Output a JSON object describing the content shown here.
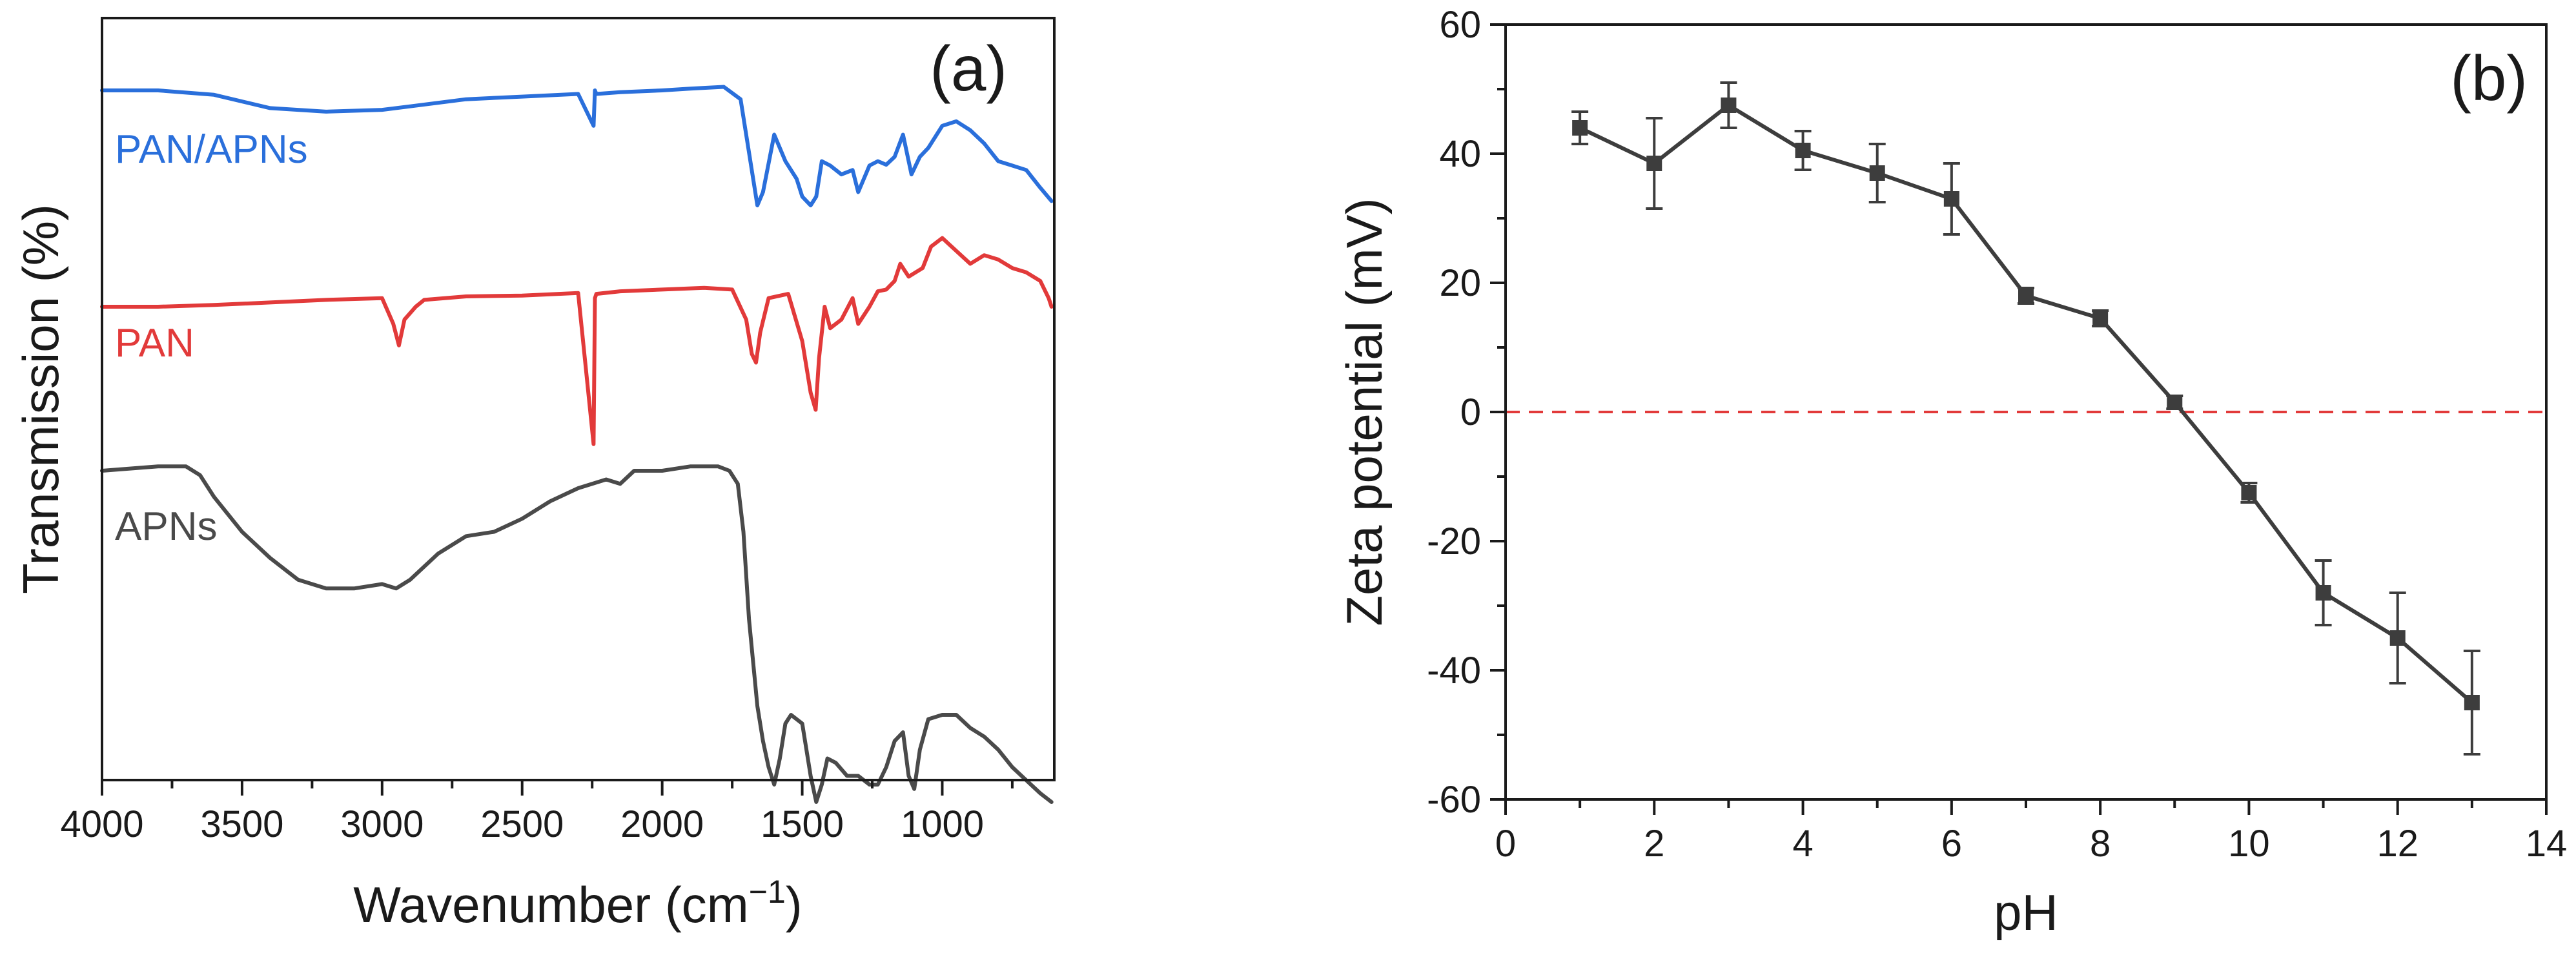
{
  "chart_data": [
    {
      "type": "line",
      "panel_label": "(a)",
      "xlabel_main": "Wavenumber (cm",
      "xlabel_sup": "−1",
      "xlabel_close": ")",
      "ylabel": "Transmission (%)",
      "xlim": [
        4000,
        600
      ],
      "x_reversed": true,
      "x_ticks": [
        "4000",
        "3500",
        "3000",
        "2500",
        "2000",
        "1500",
        "1000"
      ],
      "y_ticks_labeled": false,
      "series": [
        {
          "name": "PAN/APNs",
          "color": "#2a6fdb",
          "x": [
            4000,
            3800,
            3600,
            3400,
            3200,
            3000,
            2900,
            2700,
            2500,
            2300,
            2245,
            2240,
            2235,
            2150,
            2000,
            1900,
            1780,
            1720,
            1690,
            1660,
            1640,
            1600,
            1560,
            1520,
            1500,
            1470,
            1450,
            1430,
            1400,
            1360,
            1320,
            1300,
            1280,
            1260,
            1230,
            1200,
            1170,
            1140,
            1110,
            1080,
            1050,
            1000,
            950,
            900,
            850,
            800,
            750,
            700,
            650,
            610
          ],
          "y": [
            96,
            96,
            95.5,
            94,
            93.6,
            93.8,
            94.2,
            95,
            95.3,
            95.6,
            92,
            96,
            95.6,
            95.8,
            96,
            96.2,
            96.4,
            95,
            89,
            83,
            84.5,
            91,
            88,
            86,
            84,
            83,
            84,
            88,
            87.5,
            86.5,
            87,
            84.5,
            86,
            87.5,
            88,
            87.6,
            88.5,
            91,
            86.5,
            88.5,
            89.5,
            92,
            92.5,
            91.5,
            90,
            88,
            87.5,
            87,
            85,
            83.5
          ]
        },
        {
          "name": "PAN",
          "color": "#e23a3a",
          "x": [
            4000,
            3800,
            3600,
            3400,
            3200,
            3000,
            2960,
            2940,
            2920,
            2880,
            2850,
            2700,
            2500,
            2300,
            2245,
            2240,
            2235,
            2150,
            2000,
            1850,
            1750,
            1700,
            1680,
            1665,
            1650,
            1620,
            1550,
            1500,
            1470,
            1452,
            1440,
            1420,
            1400,
            1360,
            1320,
            1300,
            1280,
            1260,
            1230,
            1200,
            1170,
            1150,
            1120,
            1070,
            1040,
            1000,
            950,
            900,
            850,
            800,
            750,
            700,
            650,
            620,
            610
          ],
          "y": [
            66,
            66,
            66.2,
            66.5,
            66.8,
            67,
            64,
            61.5,
            64.5,
            66,
            66.8,
            67.2,
            67.3,
            67.6,
            50,
            67,
            67.5,
            67.8,
            68,
            68.2,
            68,
            64.5,
            60.5,
            59.5,
            63,
            67,
            67.5,
            62,
            56,
            54,
            60,
            66,
            63.5,
            64.5,
            67,
            64,
            65,
            66,
            67.8,
            68,
            69,
            71,
            69.5,
            70.5,
            73,
            74,
            72.5,
            71,
            72,
            71.5,
            70.5,
            70,
            69,
            67,
            66
          ]
        },
        {
          "name": "APNs",
          "color": "#4a4a4a",
          "x": [
            4000,
            3800,
            3700,
            3650,
            3600,
            3500,
            3400,
            3300,
            3200,
            3100,
            3000,
            2950,
            2900,
            2800,
            2700,
            2600,
            2500,
            2400,
            2300,
            2200,
            2150,
            2100,
            2000,
            1900,
            1800,
            1760,
            1730,
            1710,
            1690,
            1660,
            1640,
            1620,
            1600,
            1580,
            1560,
            1540,
            1500,
            1470,
            1450,
            1430,
            1410,
            1380,
            1340,
            1300,
            1260,
            1230,
            1200,
            1170,
            1140,
            1120,
            1100,
            1080,
            1050,
            1000,
            950,
            900,
            850,
            800,
            750,
            700,
            650,
            610
          ],
          "y": [
            37,
            37.5,
            37.5,
            36.5,
            34,
            30,
            27,
            24.5,
            23.5,
            23.5,
            24,
            23.5,
            24.5,
            27.5,
            29.5,
            30,
            31.5,
            33.5,
            35,
            36,
            35.5,
            37,
            37,
            37.5,
            37.5,
            37,
            35.5,
            30,
            20,
            10,
            6,
            3,
            1,
            4,
            8,
            9,
            8,
            2,
            -1,
            1,
            4,
            3.5,
            2,
            2,
            1,
            1,
            3,
            6,
            7,
            2,
            0.5,
            5,
            8.5,
            9,
            9,
            7.5,
            6.5,
            5,
            3,
            1.5,
            0,
            -1
          ]
        }
      ]
    },
    {
      "type": "line",
      "panel_label": "(b)",
      "xlabel": "pH",
      "ylabel": "Zeta potential (mV)",
      "xlim": [
        0,
        14
      ],
      "ylim": [
        -60,
        60
      ],
      "x_ticks": [
        "0",
        "2",
        "4",
        "6",
        "8",
        "10",
        "12",
        "14"
      ],
      "y_ticks": [
        "-60",
        "-40",
        "-20",
        "0",
        "20",
        "40",
        "60"
      ],
      "reference_line": {
        "y": 0,
        "style": "dashed",
        "color": "#e23a3a"
      },
      "series": [
        {
          "name": "Zeta potential",
          "color": "#3d3d3d",
          "marker": "square",
          "x": [
            1,
            2,
            3,
            4,
            5,
            6,
            7,
            8,
            9,
            10,
            11,
            12,
            13
          ],
          "y": [
            44,
            38.5,
            47.5,
            40.5,
            37,
            33,
            18,
            14.5,
            1.5,
            -12.5,
            -28,
            -35,
            -45
          ],
          "error": [
            2.5,
            7,
            3.5,
            3,
            4.5,
            5.5,
            1.2,
            1.2,
            1,
            1.5,
            5,
            7,
            8
          ]
        }
      ]
    }
  ]
}
